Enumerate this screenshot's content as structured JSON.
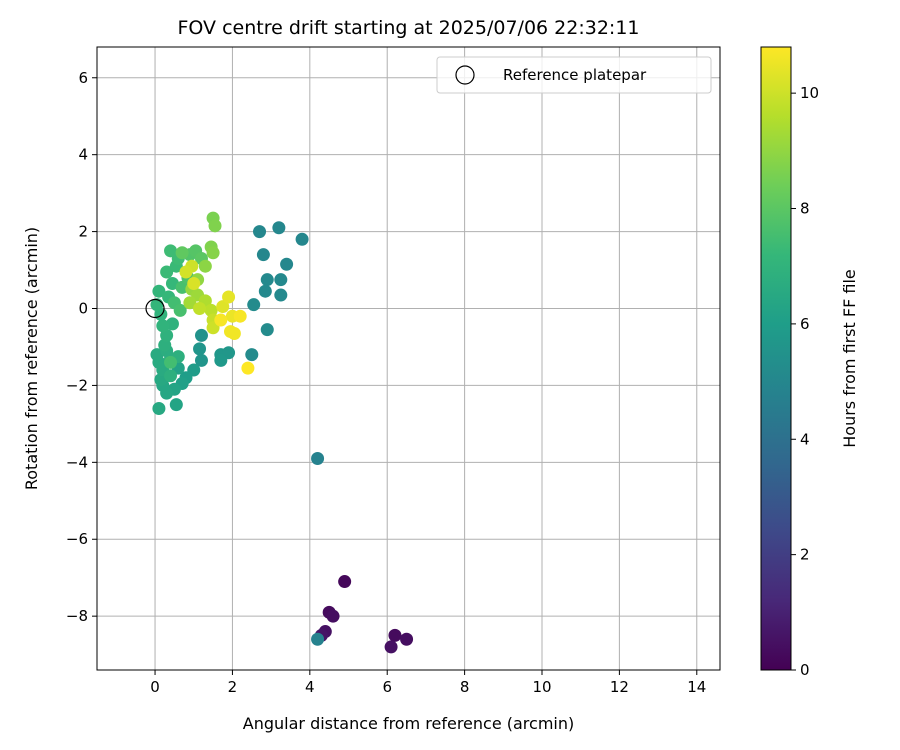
{
  "chart_data": {
    "type": "scatter",
    "title": "FOV centre drift starting at 2025/07/06 22:32:11",
    "xlabel": "Angular distance from reference (arcmin)",
    "ylabel": "Rotation from reference (arcmin)",
    "xlim": [
      -1.5,
      14.6
    ],
    "ylim": [
      -9.4,
      6.8
    ],
    "xticks": [
      "0",
      "2",
      "4",
      "6",
      "8",
      "10",
      "12",
      "14"
    ],
    "yticks": [
      "−8",
      "−6",
      "−4",
      "−2",
      "0",
      "2",
      "4",
      "6"
    ],
    "grid": true,
    "legend": {
      "position": "top-right",
      "entries": [
        "Reference platepar"
      ]
    },
    "reference_point": {
      "x": 0,
      "y": 0
    },
    "colorbar": {
      "label": "Hours from first FF file",
      "colormap": "viridis",
      "range": [
        0,
        10.8
      ],
      "ticks": [
        "0",
        "2",
        "4",
        "6",
        "8",
        "10"
      ]
    },
    "points": [
      {
        "x": 4.9,
        "y": -7.1,
        "h": 0.2
      },
      {
        "x": 4.5,
        "y": -7.9,
        "h": 0.3
      },
      {
        "x": 4.6,
        "y": -8.0,
        "h": 0.4
      },
      {
        "x": 4.4,
        "y": -8.4,
        "h": 0.5
      },
      {
        "x": 4.3,
        "y": -8.5,
        "h": 0.6
      },
      {
        "x": 6.2,
        "y": -8.5,
        "h": 0.3
      },
      {
        "x": 6.5,
        "y": -8.6,
        "h": 0.4
      },
      {
        "x": 6.1,
        "y": -8.8,
        "h": 0.5
      },
      {
        "x": 4.2,
        "y": -8.6,
        "h": 4.8
      },
      {
        "x": 4.2,
        "y": -3.9,
        "h": 4.8
      },
      {
        "x": 2.7,
        "y": 2.0,
        "h": 5.0
      },
      {
        "x": 3.2,
        "y": 2.1,
        "h": 5.0
      },
      {
        "x": 3.8,
        "y": 1.8,
        "h": 5.0
      },
      {
        "x": 2.8,
        "y": 1.4,
        "h": 5.0
      },
      {
        "x": 3.4,
        "y": 1.15,
        "h": 5.0
      },
      {
        "x": 2.9,
        "y": 0.75,
        "h": 5.1
      },
      {
        "x": 3.25,
        "y": 0.75,
        "h": 5.1
      },
      {
        "x": 2.85,
        "y": 0.45,
        "h": 5.1
      },
      {
        "x": 3.25,
        "y": 0.35,
        "h": 5.1
      },
      {
        "x": 2.55,
        "y": 0.1,
        "h": 5.2
      },
      {
        "x": 2.9,
        "y": -0.55,
        "h": 5.2
      },
      {
        "x": 2.5,
        "y": -1.2,
        "h": 5.2
      },
      {
        "x": 1.2,
        "y": -0.7,
        "h": 5.5
      },
      {
        "x": 1.15,
        "y": -1.05,
        "h": 5.6
      },
      {
        "x": 1.2,
        "y": -1.35,
        "h": 5.6
      },
      {
        "x": 1.7,
        "y": -1.2,
        "h": 5.7
      },
      {
        "x": 1.9,
        "y": -1.15,
        "h": 5.7
      },
      {
        "x": 1.7,
        "y": -1.35,
        "h": 5.8
      },
      {
        "x": 1.0,
        "y": -1.6,
        "h": 5.9
      },
      {
        "x": 0.8,
        "y": -1.8,
        "h": 6.0
      },
      {
        "x": 0.7,
        "y": -1.95,
        "h": 6.1
      },
      {
        "x": 0.6,
        "y": -1.55,
        "h": 6.2
      },
      {
        "x": 0.5,
        "y": -2.1,
        "h": 6.3
      },
      {
        "x": 0.55,
        "y": -2.5,
        "h": 6.3
      },
      {
        "x": 0.3,
        "y": -2.2,
        "h": 6.4
      },
      {
        "x": 0.2,
        "y": -2.0,
        "h": 6.4
      },
      {
        "x": 0.1,
        "y": -2.6,
        "h": 6.5
      },
      {
        "x": 0.15,
        "y": -1.85,
        "h": 6.5
      },
      {
        "x": 0.2,
        "y": -1.6,
        "h": 6.6
      },
      {
        "x": 0.1,
        "y": -1.4,
        "h": 6.6
      },
      {
        "x": 0.05,
        "y": -1.2,
        "h": 6.6
      },
      {
        "x": 0.3,
        "y": -1.1,
        "h": 6.7
      },
      {
        "x": 0.4,
        "y": -1.3,
        "h": 6.7
      },
      {
        "x": 0.25,
        "y": -0.95,
        "h": 6.8
      },
      {
        "x": 0.4,
        "y": -1.75,
        "h": 6.8
      },
      {
        "x": 0.6,
        "y": -1.25,
        "h": 6.8
      },
      {
        "x": 0.3,
        "y": -0.7,
        "h": 6.9
      },
      {
        "x": 0.45,
        "y": -0.4,
        "h": 6.9
      },
      {
        "x": 0.2,
        "y": -0.45,
        "h": 7.0
      },
      {
        "x": 0.15,
        "y": -0.15,
        "h": 7.0
      },
      {
        "x": 0.05,
        "y": 0.1,
        "h": 7.1
      },
      {
        "x": 0.1,
        "y": 0.45,
        "h": 7.1
      },
      {
        "x": 0.35,
        "y": 0.3,
        "h": 7.2
      },
      {
        "x": 0.45,
        "y": 0.65,
        "h": 7.2
      },
      {
        "x": 0.3,
        "y": 0.95,
        "h": 7.3
      },
      {
        "x": 0.55,
        "y": 1.1,
        "h": 7.3
      },
      {
        "x": 0.4,
        "y": 1.5,
        "h": 7.4
      },
      {
        "x": 0.6,
        "y": 1.3,
        "h": 7.4
      },
      {
        "x": 0.5,
        "y": 0.15,
        "h": 7.5
      },
      {
        "x": 0.4,
        "y": -1.4,
        "h": 7.5
      },
      {
        "x": 0.65,
        "y": -0.05,
        "h": 7.6
      },
      {
        "x": 0.7,
        "y": 0.55,
        "h": 7.6
      },
      {
        "x": 0.85,
        "y": 0.8,
        "h": 7.7
      },
      {
        "x": 0.9,
        "y": 1.4,
        "h": 7.8
      },
      {
        "x": 1.05,
        "y": 1.5,
        "h": 7.9
      },
      {
        "x": 1.2,
        "y": 1.3,
        "h": 8.0
      },
      {
        "x": 0.7,
        "y": 1.45,
        "h": 8.1
      },
      {
        "x": 1.5,
        "y": 2.35,
        "h": 8.6
      },
      {
        "x": 1.55,
        "y": 2.15,
        "h": 8.7
      },
      {
        "x": 1.45,
        "y": 1.6,
        "h": 8.7
      },
      {
        "x": 1.5,
        "y": 1.45,
        "h": 8.8
      },
      {
        "x": 1.3,
        "y": 1.1,
        "h": 8.9
      },
      {
        "x": 1.1,
        "y": 0.75,
        "h": 9.0
      },
      {
        "x": 0.95,
        "y": 0.5,
        "h": 9.1
      },
      {
        "x": 1.1,
        "y": 0.35,
        "h": 9.2
      },
      {
        "x": 0.9,
        "y": 0.15,
        "h": 9.3
      },
      {
        "x": 1.3,
        "y": 0.2,
        "h": 9.5
      },
      {
        "x": 1.45,
        "y": -0.05,
        "h": 9.7
      },
      {
        "x": 1.15,
        "y": 0.0,
        "h": 9.8
      },
      {
        "x": 1.5,
        "y": -0.3,
        "h": 9.9
      },
      {
        "x": 1.5,
        "y": -0.5,
        "h": 10.0
      },
      {
        "x": 0.95,
        "y": 1.1,
        "h": 10.0
      },
      {
        "x": 0.8,
        "y": 0.95,
        "h": 10.1
      },
      {
        "x": 1.0,
        "y": 0.65,
        "h": 10.2
      },
      {
        "x": 1.75,
        "y": 0.05,
        "h": 10.3
      },
      {
        "x": 1.9,
        "y": 0.3,
        "h": 10.4
      },
      {
        "x": 2.0,
        "y": -0.2,
        "h": 10.5
      },
      {
        "x": 1.95,
        "y": -0.6,
        "h": 10.6
      },
      {
        "x": 2.05,
        "y": -0.65,
        "h": 10.6
      },
      {
        "x": 2.2,
        "y": -0.2,
        "h": 10.7
      },
      {
        "x": 1.7,
        "y": -0.3,
        "h": 10.7
      },
      {
        "x": 2.4,
        "y": -1.55,
        "h": 10.8
      }
    ]
  }
}
